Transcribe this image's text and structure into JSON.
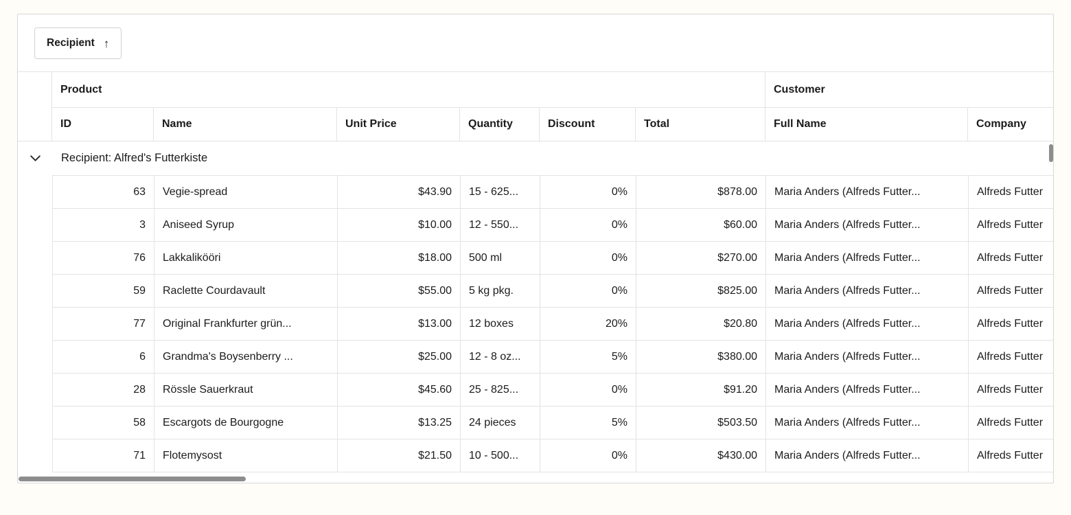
{
  "group_panel": {
    "chip_label": "Recipient",
    "sort_arrow": "↑"
  },
  "header": {
    "bands": [
      {
        "label": "Product"
      },
      {
        "label": "Customer"
      }
    ],
    "columns": [
      {
        "label": "ID",
        "align": "right"
      },
      {
        "label": "Name",
        "align": "left"
      },
      {
        "label": "Unit Price",
        "align": "right"
      },
      {
        "label": "Quantity",
        "align": "left"
      },
      {
        "label": "Discount",
        "align": "right"
      },
      {
        "label": "Total",
        "align": "right"
      },
      {
        "label": "Full Name",
        "align": "left"
      },
      {
        "label": "Company",
        "align": "left"
      }
    ]
  },
  "group_row": {
    "collapse_icon": "chevron-down",
    "label": "Recipient: Alfred's Futterkiste"
  },
  "rows": [
    {
      "id": "63",
      "name": "Vegie-spread",
      "unit_price": "$43.90",
      "quantity": "15 - 625...",
      "discount": "0%",
      "total": "$878.00",
      "full_name": "Maria Anders (Alfreds Futter...",
      "company": "Alfreds Futter"
    },
    {
      "id": "3",
      "name": "Aniseed Syrup",
      "unit_price": "$10.00",
      "quantity": "12 - 550...",
      "discount": "0%",
      "total": "$60.00",
      "full_name": "Maria Anders (Alfreds Futter...",
      "company": "Alfreds Futter"
    },
    {
      "id": "76",
      "name": "Lakkalikööri",
      "unit_price": "$18.00",
      "quantity": "500 ml",
      "discount": "0%",
      "total": "$270.00",
      "full_name": "Maria Anders (Alfreds Futter...",
      "company": "Alfreds Futter"
    },
    {
      "id": "59",
      "name": "Raclette Courdavault",
      "unit_price": "$55.00",
      "quantity": "5 kg pkg.",
      "discount": "0%",
      "total": "$825.00",
      "full_name": "Maria Anders (Alfreds Futter...",
      "company": "Alfreds Futter"
    },
    {
      "id": "77",
      "name": "Original Frankfurter grün...",
      "unit_price": "$13.00",
      "quantity": "12 boxes",
      "discount": "20%",
      "total": "$20.80",
      "full_name": "Maria Anders (Alfreds Futter...",
      "company": "Alfreds Futter"
    },
    {
      "id": "6",
      "name": "Grandma's Boysenberry ...",
      "unit_price": "$25.00",
      "quantity": "12 - 8 oz...",
      "discount": "5%",
      "total": "$380.00",
      "full_name": "Maria Anders (Alfreds Futter...",
      "company": "Alfreds Futter"
    },
    {
      "id": "28",
      "name": "Rössle Sauerkraut",
      "unit_price": "$45.60",
      "quantity": "25 - 825...",
      "discount": "0%",
      "total": "$91.20",
      "full_name": "Maria Anders (Alfreds Futter...",
      "company": "Alfreds Futter"
    },
    {
      "id": "58",
      "name": "Escargots de Bourgogne",
      "unit_price": "$13.25",
      "quantity": "24 pieces",
      "discount": "5%",
      "total": "$503.50",
      "full_name": "Maria Anders (Alfreds Futter...",
      "company": "Alfreds Futter"
    },
    {
      "id": "71",
      "name": "Flotemysost",
      "unit_price": "$21.50",
      "quantity": "10 - 500...",
      "discount": "0%",
      "total": "$430.00",
      "full_name": "Maria Anders (Alfreds Futter...",
      "company": "Alfreds Futter"
    }
  ],
  "scrollbars": {
    "horizontal_thumb": true,
    "vertical_thumb": true
  },
  "colors": {
    "page_bg": "#fffdf7",
    "frame_border": "#d6d6d6",
    "cell_border": "#e3e3e3",
    "text": "#1b1b1b",
    "scroll_thumb": "#8d8d8d"
  }
}
